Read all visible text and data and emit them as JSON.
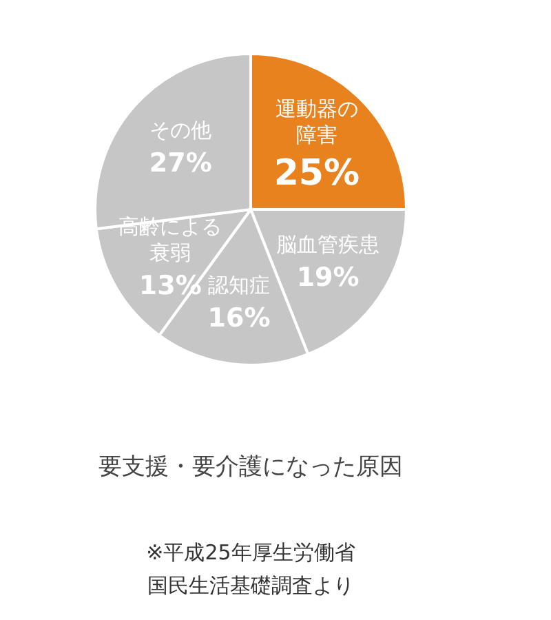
{
  "chart_data": {
    "type": "pie",
    "title": "要支援・要介護になった原因",
    "categories": [
      "運動器の障害",
      "脳血管疾患",
      "認知症",
      "高齢による衰弱",
      "その他"
    ],
    "values": [
      25,
      19,
      16,
      13,
      27
    ],
    "value_labels": [
      "25%",
      "19%",
      "16%",
      "13%",
      "27%"
    ],
    "colors": [
      "#e8821e",
      "#c6c6c6",
      "#c6c6c6",
      "#c6c6c6",
      "#c6c6c6"
    ],
    "annotations": [
      "※平成25年厚生労働省国民生活基礎調査より"
    ]
  }
}
